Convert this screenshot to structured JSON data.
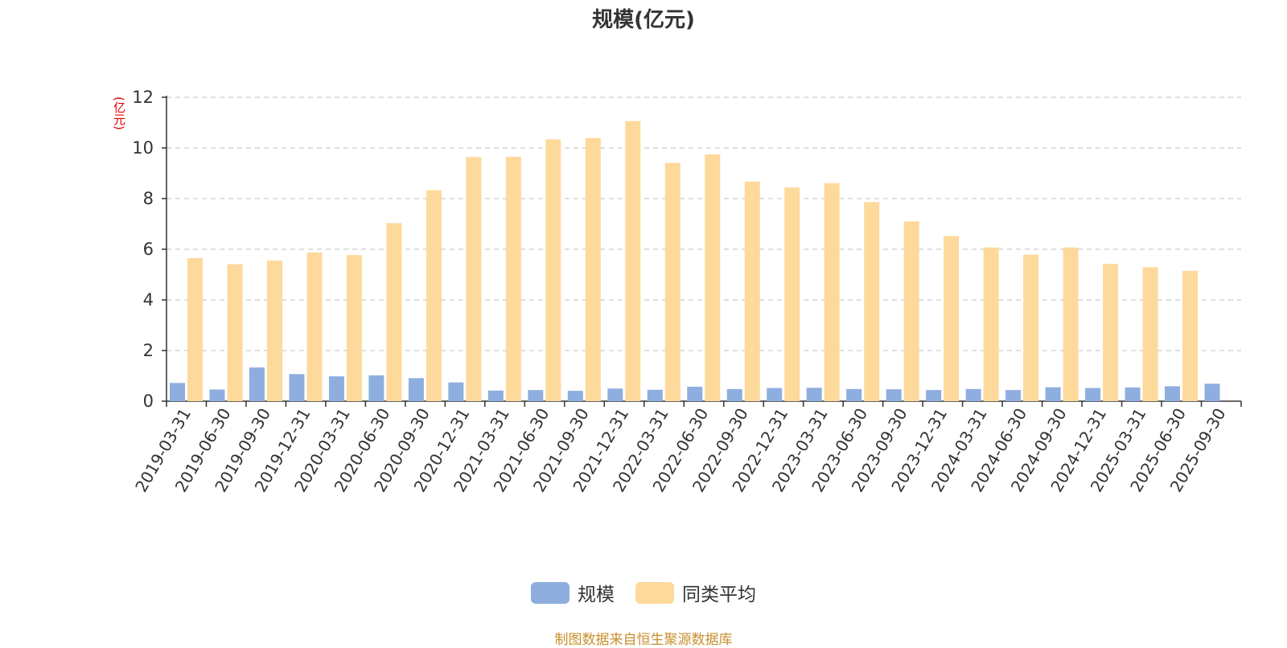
{
  "colors": {
    "scale": "#8eaedf",
    "peer_avg": "#fdd99b",
    "unit": "#e00000",
    "source": "#c8902e"
  },
  "source_note": "制图数据来自恒生聚源数据库",
  "chart_data": {
    "type": "bar",
    "title": "规模(亿元)",
    "ylabel": "(亿元)",
    "ylim": [
      0,
      12
    ],
    "yticks": [
      0,
      2,
      4,
      6,
      8,
      10,
      12
    ],
    "grid": true,
    "legend_position": "bottom",
    "categories": [
      "2019-03-31",
      "2019-06-30",
      "2019-09-30",
      "2019-12-31",
      "2020-03-31",
      "2020-06-30",
      "2020-09-30",
      "2020-12-31",
      "2021-03-31",
      "2021-06-30",
      "2021-09-30",
      "2021-12-31",
      "2022-03-31",
      "2022-06-30",
      "2022-09-30",
      "2022-12-31",
      "2023-03-31",
      "2023-06-30",
      "2023-09-30",
      "2023-12-31",
      "2024-03-31",
      "2024-06-30",
      "2024-09-30",
      "2024-12-31",
      "2025-03-31",
      "2025-06-30",
      "2025-09-30"
    ],
    "series": [
      {
        "name": "规模",
        "color": "#8eaedf",
        "values": [
          0.72,
          0.46,
          1.33,
          1.07,
          0.98,
          1.02,
          0.91,
          0.74,
          0.42,
          0.44,
          0.41,
          0.5,
          0.45,
          0.57,
          0.48,
          0.52,
          0.53,
          0.48,
          0.47,
          0.44,
          0.48,
          0.44,
          0.55,
          0.52,
          0.54,
          0.59,
          0.69
        ]
      },
      {
        "name": "同类平均",
        "color": "#fdd99b",
        "values": [
          5.65,
          5.41,
          5.55,
          5.87,
          5.77,
          7.03,
          8.33,
          9.64,
          9.65,
          10.34,
          10.39,
          11.06,
          9.41,
          9.74,
          8.67,
          8.44,
          8.61,
          7.86,
          7.1,
          6.52,
          6.07,
          5.79,
          6.07,
          5.42,
          5.29,
          5.15,
          null
        ]
      }
    ]
  }
}
